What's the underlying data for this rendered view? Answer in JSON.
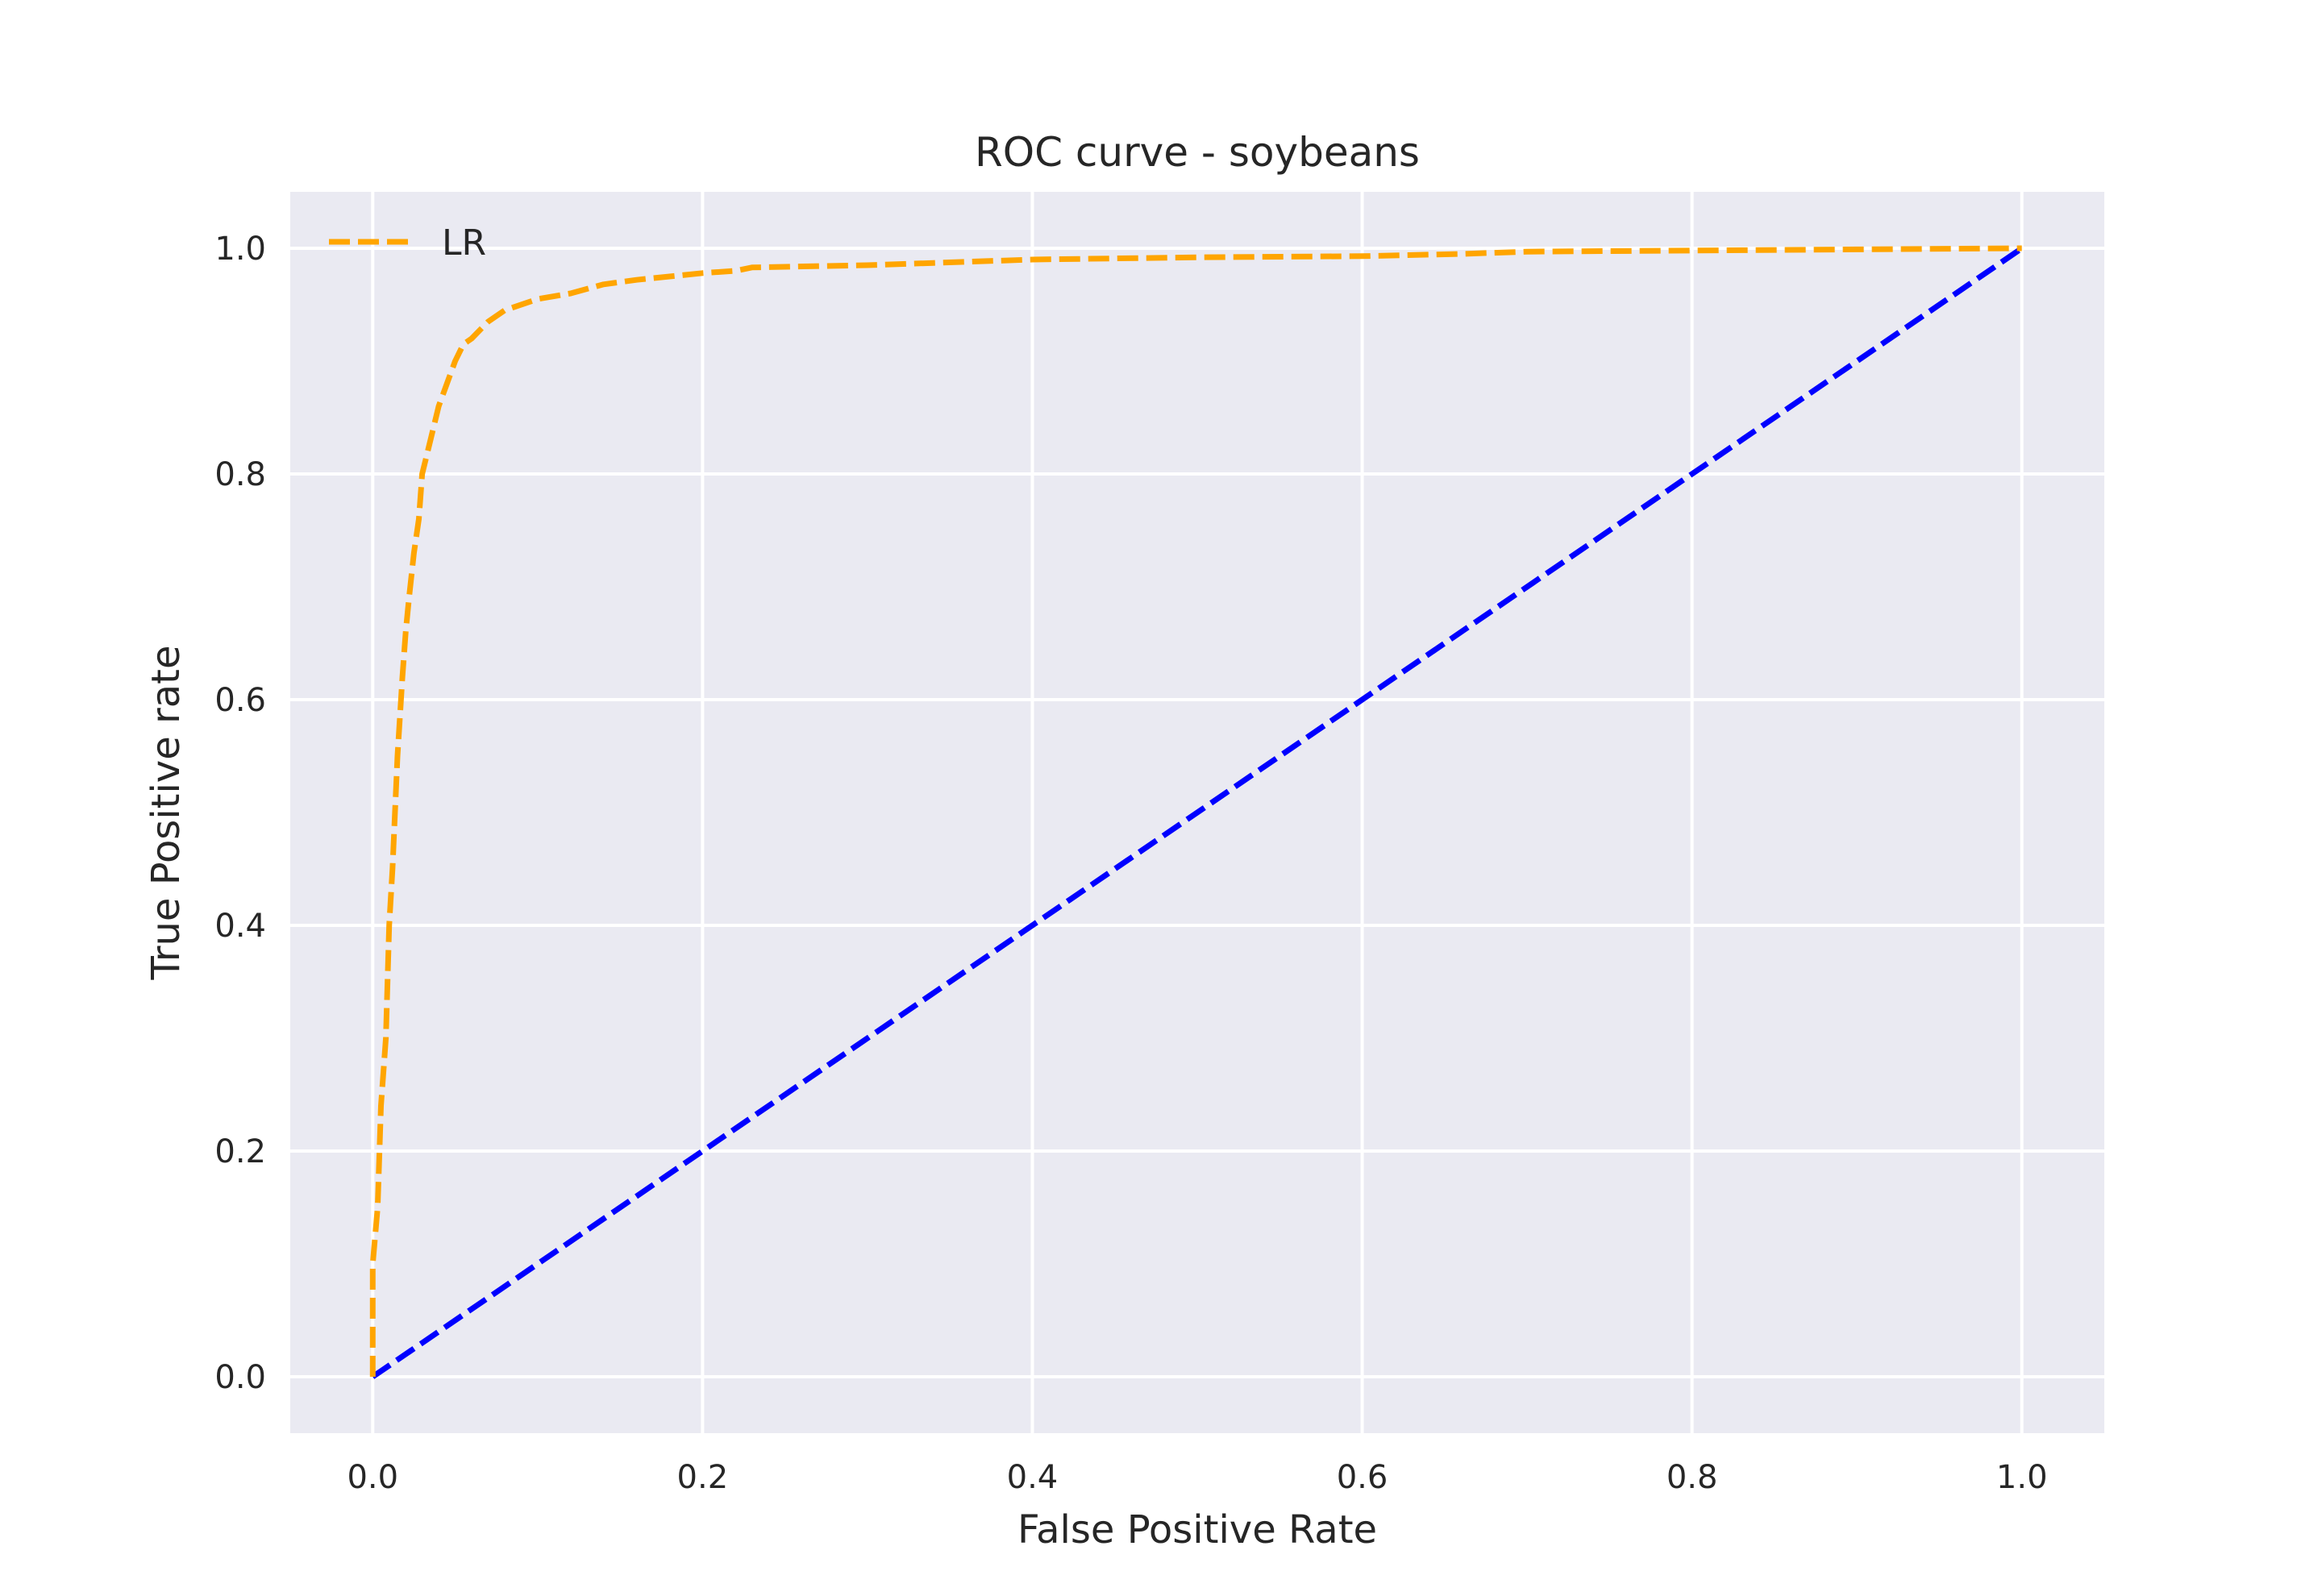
{
  "chart_data": {
    "type": "line",
    "title": "ROC curve - soybeans",
    "xlabel": "False Positive Rate",
    "ylabel": "True Positive rate",
    "xlim": [
      -0.05,
      1.05
    ],
    "ylim": [
      -0.05,
      1.05
    ],
    "x_ticks": [
      "0.0",
      "0.2",
      "0.4",
      "0.6",
      "0.8",
      "1.0"
    ],
    "y_ticks": [
      "0.0",
      "0.2",
      "0.4",
      "0.6",
      "0.8",
      "1.0"
    ],
    "grid": true,
    "background_color": "#EAEAF2",
    "legend": {
      "placement": "top-left",
      "entries": [
        "LR"
      ]
    },
    "series": [
      {
        "name": "LR",
        "color": "#FFA500",
        "style": "dashed",
        "x": [
          0.0,
          0.0,
          0.003,
          0.005,
          0.008,
          0.01,
          0.012,
          0.015,
          0.018,
          0.02,
          0.022,
          0.025,
          0.028,
          0.03,
          0.035,
          0.04,
          0.045,
          0.05,
          0.055,
          0.06,
          0.07,
          0.08,
          0.1,
          0.12,
          0.14,
          0.16,
          0.18,
          0.2,
          0.22,
          0.23,
          0.3,
          0.34,
          0.4,
          0.5,
          0.6,
          0.66,
          0.7,
          0.8,
          0.9,
          1.0
        ],
        "y": [
          0.0,
          0.1,
          0.15,
          0.24,
          0.3,
          0.4,
          0.45,
          0.55,
          0.62,
          0.66,
          0.69,
          0.73,
          0.76,
          0.8,
          0.83,
          0.86,
          0.88,
          0.9,
          0.915,
          0.92,
          0.935,
          0.945,
          0.955,
          0.96,
          0.968,
          0.972,
          0.975,
          0.978,
          0.98,
          0.983,
          0.985,
          0.987,
          0.99,
          0.992,
          0.993,
          0.995,
          0.997,
          0.998,
          0.999,
          1.0
        ]
      },
      {
        "name": "",
        "color": "#0000FF",
        "style": "dashed",
        "x": [
          0.0,
          1.0
        ],
        "y": [
          0.0,
          1.0
        ]
      }
    ]
  }
}
